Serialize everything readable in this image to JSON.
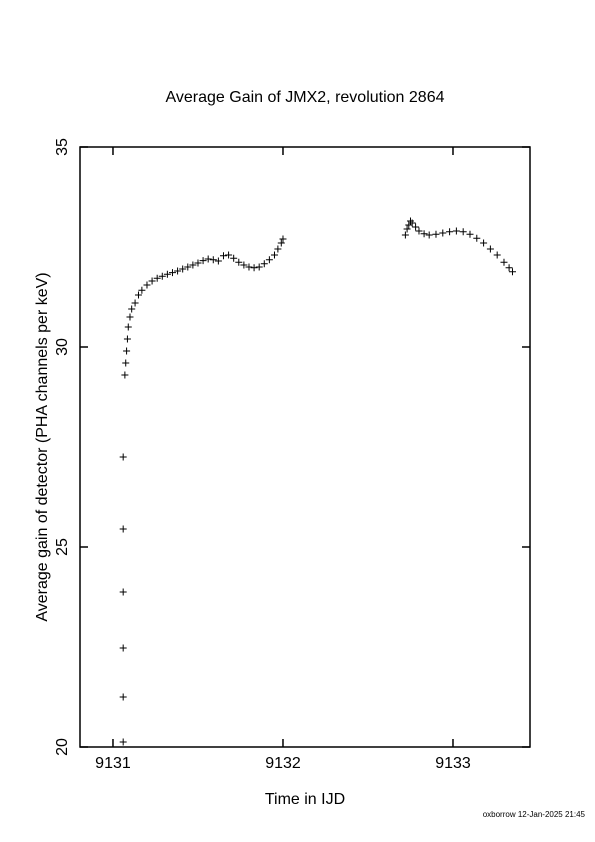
{
  "chart_data": {
    "type": "scatter",
    "title": "Average Gain of JMX2, revolution 2864",
    "x_label": "Time in IJD",
    "y_label": "Average gain of detector (PHA channels per keV)",
    "footer": "oxborrow 12-Jan-2025 21:45",
    "xlim": [
      9130.806,
      9133.453
    ],
    "xticks": [
      9131,
      9132,
      9133
    ],
    "ylim": [
      20,
      35
    ],
    "yticks": [
      20,
      25,
      30,
      35
    ],
    "color": "#000000",
    "marker": "plus",
    "x": [
      9131.06,
      9131.06,
      9131.06,
      9131.06,
      9131.06,
      9131.06,
      9131.07,
      9131.075,
      9131.08,
      9131.085,
      9131.09,
      9131.1,
      9131.11,
      9131.13,
      9131.15,
      9131.17,
      9131.2,
      9131.23,
      9131.26,
      9131.29,
      9131.32,
      9131.35,
      9131.38,
      9131.41,
      9131.44,
      9131.47,
      9131.5,
      9131.53,
      9131.56,
      9131.59,
      9131.62,
      9131.65,
      9131.68,
      9131.71,
      9131.74,
      9131.77,
      9131.8,
      9131.83,
      9131.86,
      9131.89,
      9131.92,
      9131.95,
      9131.97,
      9131.99,
      9132.0,
      9132.72,
      9132.73,
      9132.74,
      9132.75,
      9132.76,
      9132.78,
      9132.8,
      9132.83,
      9132.86,
      9132.9,
      9132.94,
      9132.98,
      9133.02,
      9133.06,
      9133.1,
      9133.14,
      9133.18,
      9133.22,
      9133.26,
      9133.3,
      9133.33,
      9133.35
    ],
    "values": [
      27.25,
      25.45,
      23.875,
      22.475,
      21.25,
      20.125,
      29.3,
      29.6,
      29.9,
      30.2,
      30.5,
      30.75,
      30.95,
      31.1,
      31.3,
      31.42,
      31.55,
      31.65,
      31.72,
      31.77,
      31.82,
      31.86,
      31.9,
      31.95,
      32.0,
      32.05,
      32.1,
      32.16,
      32.2,
      32.18,
      32.15,
      32.28,
      32.3,
      32.22,
      32.12,
      32.05,
      32.0,
      31.98,
      32.0,
      32.08,
      32.18,
      32.3,
      32.45,
      32.6,
      32.7,
      32.8,
      32.95,
      33.05,
      33.15,
      33.1,
      33.0,
      32.9,
      32.83,
      32.8,
      32.82,
      32.85,
      32.88,
      32.9,
      32.88,
      32.82,
      32.72,
      32.6,
      32.45,
      32.3,
      32.12,
      31.98,
      31.88
    ]
  }
}
